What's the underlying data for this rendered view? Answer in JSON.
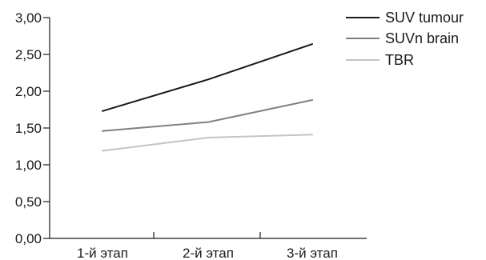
{
  "chart_data": {
    "type": "line",
    "title": "",
    "xlabel": "",
    "ylabel": "",
    "categories": [
      "1-й этап",
      "2-й этап",
      "3-й этап"
    ],
    "y_ticks": [
      "0,00",
      "0,50",
      "1,00",
      "1,50",
      "2,00",
      "2,50",
      "3,00"
    ],
    "ylim": [
      0,
      3
    ],
    "grid": false,
    "legend_position": "top-right",
    "series": [
      {
        "name": "SUV tumour",
        "values": [
          1.73,
          2.16,
          2.64
        ],
        "color": "#1a1a1a"
      },
      {
        "name": "SUVn brain",
        "values": [
          1.46,
          1.58,
          1.88
        ],
        "color": "#808080"
      },
      {
        "name": "TBR",
        "values": [
          1.19,
          1.37,
          1.41
        ],
        "color": "#c4c4c4"
      }
    ]
  }
}
